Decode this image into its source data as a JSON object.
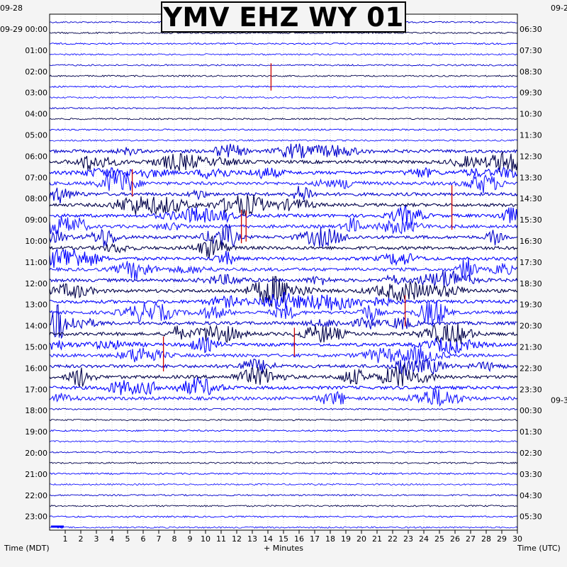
{
  "chart_data": {
    "type": "heatmap",
    "title": "YMV EHZ WY 01",
    "xlabel": "+ Minutes",
    "left_axis_title": "Time (MDT)",
    "right_axis_title": "Time (UTC)",
    "xlim": [
      0,
      30
    ],
    "x_ticks": [
      1,
      2,
      3,
      4,
      5,
      6,
      7,
      8,
      9,
      10,
      11,
      12,
      13,
      14,
      15,
      16,
      17,
      18,
      19,
      20,
      21,
      22,
      23,
      24,
      25,
      26,
      27,
      28,
      29,
      30
    ],
    "left_dates": [
      {
        "label": "09-28",
        "hour": -1
      },
      {
        "label": "09-29 00:00",
        "hour": 0
      }
    ],
    "left_labels": [
      "01:00",
      "02:00",
      "03:00",
      "04:00",
      "05:00",
      "06:00",
      "07:00",
      "08:00",
      "09:00",
      "10:00",
      "11:00",
      "12:00",
      "13:00",
      "14:00",
      "15:00",
      "16:00",
      "17:00",
      "18:00",
      "19:00",
      "20:00",
      "21:00",
      "22:00",
      "23:00"
    ],
    "right_dates": [
      {
        "label": "09-2",
        "hour": -1
      },
      {
        "label": "09-3",
        "hour": 17.5
      }
    ],
    "right_labels": [
      "06:30",
      "07:30",
      "08:30",
      "09:30",
      "10:30",
      "11:30",
      "12:30",
      "13:30",
      "14:30",
      "15:30",
      "16:30",
      "17:30",
      "18:30",
      "19:30",
      "20:30",
      "21:30",
      "22:30",
      "23:30",
      "00:30",
      "01:30",
      "02:30",
      "03:30",
      "04:30",
      "05:30"
    ],
    "rows_per_hour": 2,
    "total_rows": 48,
    "trace_colors": [
      "#0000cc",
      "#00004a",
      "#0000ff",
      "#1a1aff"
    ],
    "event_color": "#cc0000",
    "noisy_hours": [
      6,
      17
    ],
    "events": [
      {
        "minute": 14.2,
        "hour": 2.0
      },
      {
        "minute": 12.3,
        "hour": 9.0
      },
      {
        "minute": 12.6,
        "hour": 9.0
      },
      {
        "minute": 22.8,
        "hour": 13.0
      },
      {
        "minute": 15.7,
        "hour": 14.5
      },
      {
        "minute": 7.3,
        "hour": 15.0
      },
      {
        "minute": 25.8,
        "hour": 8.0
      },
      {
        "minute": 5.3,
        "hour": 7.0
      }
    ]
  }
}
